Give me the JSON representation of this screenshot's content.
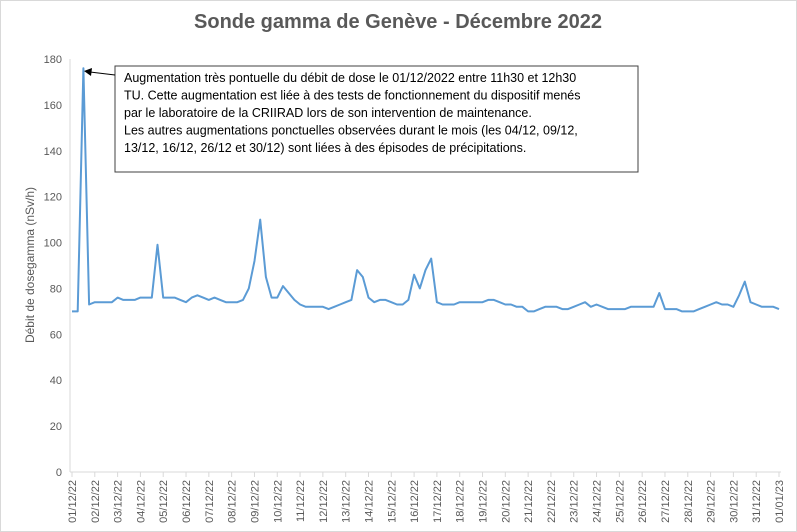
{
  "chart_data": {
    "type": "line",
    "title": "Sonde gamma de Genève - Décembre 2022",
    "ylabel": "Débit de dosegamma (nSv/h)",
    "annotation": [
      "Augmentation très pontuelle du débit de dose le 01/12/2022  entre 11h30 et 12h30",
      "TU.  Cette augmentation est liée à des tests de fonctionnement du dispositif menés",
      "par le laboratoire de la CRIIRAD lors de son intervention de maintenance.",
      "Les autres augmentations ponctuelles observées durant le mois (les 04/12,  09/12,",
      "13/12, 16/12,  26/12 et 30/12)  sont liées à des épisodes de précipitations."
    ],
    "categories": [
      "01/12/22",
      null,
      null,
      null,
      "02/12/22",
      null,
      null,
      null,
      "03/12/22",
      null,
      null,
      null,
      "04/12/22",
      null,
      null,
      null,
      "05/12/22",
      null,
      null,
      null,
      "06/12/22",
      null,
      null,
      null,
      "07/12/22",
      null,
      null,
      null,
      "08/12/22",
      null,
      null,
      null,
      "09/12/22",
      null,
      null,
      null,
      "10/12/22",
      null,
      null,
      null,
      "11/12/22",
      null,
      null,
      null,
      "12/12/22",
      null,
      null,
      null,
      "13/12/22",
      null,
      null,
      null,
      "14/12/22",
      null,
      null,
      null,
      "15/12/22",
      null,
      null,
      null,
      "16/12/22",
      null,
      null,
      null,
      "17/12/22",
      null,
      null,
      null,
      "18/12/22",
      null,
      null,
      null,
      "19/12/22",
      null,
      null,
      null,
      "20/12/22",
      null,
      null,
      null,
      "21/12/22",
      null,
      null,
      null,
      "22/12/22",
      null,
      null,
      null,
      "23/12/22",
      null,
      null,
      null,
      "24/12/22",
      null,
      null,
      null,
      "25/12/22",
      null,
      null,
      null,
      "26/12/22",
      null,
      null,
      null,
      "27/12/22",
      null,
      null,
      null,
      "28/12/22",
      null,
      null,
      null,
      "29/12/22",
      null,
      null,
      null,
      "30/12/22",
      null,
      null,
      null,
      "31/12/22",
      null,
      null,
      null,
      "01/01/23"
    ],
    "series": [
      {
        "name": "Débit de dose",
        "color": "#5b9bd5",
        "values": [
          70,
          70,
          176,
          73,
          74,
          74,
          74,
          74,
          76,
          75,
          75,
          75,
          76,
          76,
          76,
          99,
          76,
          76,
          76,
          75,
          74,
          76,
          77,
          76,
          75,
          76,
          75,
          74,
          74,
          74,
          75,
          80,
          92,
          110,
          85,
          76,
          76,
          81,
          78,
          75,
          73,
          72,
          72,
          72,
          72,
          71,
          72,
          73,
          74,
          75,
          88,
          85,
          76,
          74,
          75,
          75,
          74,
          73,
          73,
          75,
          86,
          80,
          88,
          93,
          74,
          73,
          73,
          73,
          74,
          74,
          74,
          74,
          74,
          75,
          75,
          74,
          73,
          73,
          72,
          72,
          70,
          70,
          71,
          72,
          72,
          72,
          71,
          71,
          72,
          73,
          74,
          72,
          73,
          72,
          71,
          71,
          71,
          71,
          72,
          72,
          72,
          72,
          72,
          78,
          71,
          71,
          71,
          70,
          70,
          70,
          71,
          72,
          73,
          74,
          73,
          73,
          72,
          77,
          83,
          74,
          73,
          72,
          72,
          72,
          71
        ]
      }
    ],
    "ylim": [
      0,
      180
    ],
    "yticks": [
      0,
      20,
      40,
      60,
      80,
      100,
      120,
      140,
      160,
      180
    ],
    "grid": false
  }
}
